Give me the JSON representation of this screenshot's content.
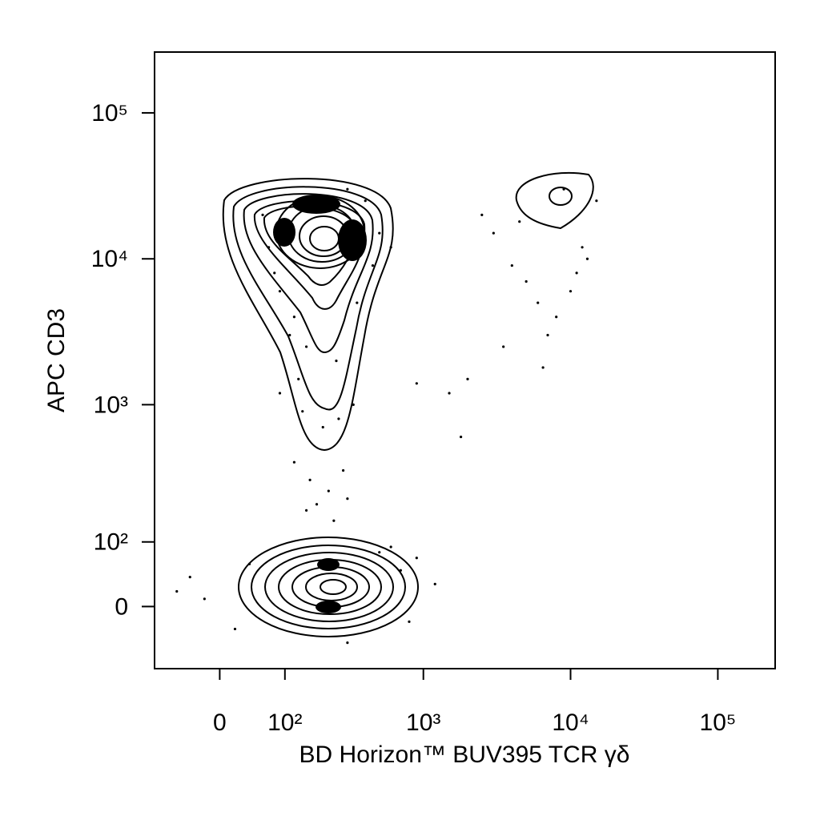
{
  "chart_data": {
    "type": "scatter",
    "xlabel": "BD Horizon™ BUV395 TCR γδ",
    "ylabel": "APC CD3",
    "xscale": "biexponential",
    "yscale": "biexponential",
    "xlim": [
      -100,
      245000
    ],
    "ylim": [
      -95,
      261000
    ],
    "xticks": [
      0,
      {
        "value": 100,
        "label": "10²"
      },
      {
        "value": 1000,
        "label": "10³"
      },
      {
        "value": 10000,
        "label": "10⁴"
      },
      {
        "value": 100000,
        "label": "10⁵"
      }
    ],
    "yticks": [
      {
        "value": 0,
        "label": "0"
      },
      {
        "value": 100,
        "label": "10²"
      },
      {
        "value": 1000,
        "label": "10³"
      },
      {
        "value": 10000,
        "label": "10⁴"
      },
      {
        "value": 100000,
        "label": "10⁵"
      }
    ],
    "series": [
      {
        "color": "#000000",
        "x": [
          60,
          70,
          90,
          120,
          150,
          300,
          400,
          500,
          80,
          110,
          130,
          250,
          350,
          450,
          600,
          90,
          140,
          200,
          260,
          330,
          120,
          160,
          220,
          280,
          180,
          240,
          150,
          300,
          -40,
          -20,
          20,
          40,
          500,
          700,
          800,
          1200,
          600,
          900,
          300,
          -60,
          2500,
          3000,
          4000,
          5000,
          6000,
          8000,
          10000,
          12000,
          15000,
          9000,
          7000,
          3500,
          2000,
          1500,
          4500,
          11000,
          13000,
          6500,
          900,
          1800
        ],
        "y": [
          20000,
          12000,
          6000,
          4000,
          2500,
          30000,
          25000,
          15000,
          8000,
          3000,
          1500,
          2000,
          5000,
          9000,
          12000,
          1200,
          900,
          700,
          800,
          1000,
          400,
          300,
          250,
          350,
          200,
          150,
          180,
          220,
          40,
          10,
          -30,
          60,
          80,
          50,
          -20,
          30,
          90,
          70,
          -50,
          20,
          20000,
          15000,
          9000,
          7000,
          5000,
          4000,
          6000,
          12000,
          25000,
          30000,
          3000,
          2500,
          1500,
          1200,
          18000,
          8000,
          10000,
          1800,
          1400,
          600
        ],
        "values": null
      }
    ]
  }
}
